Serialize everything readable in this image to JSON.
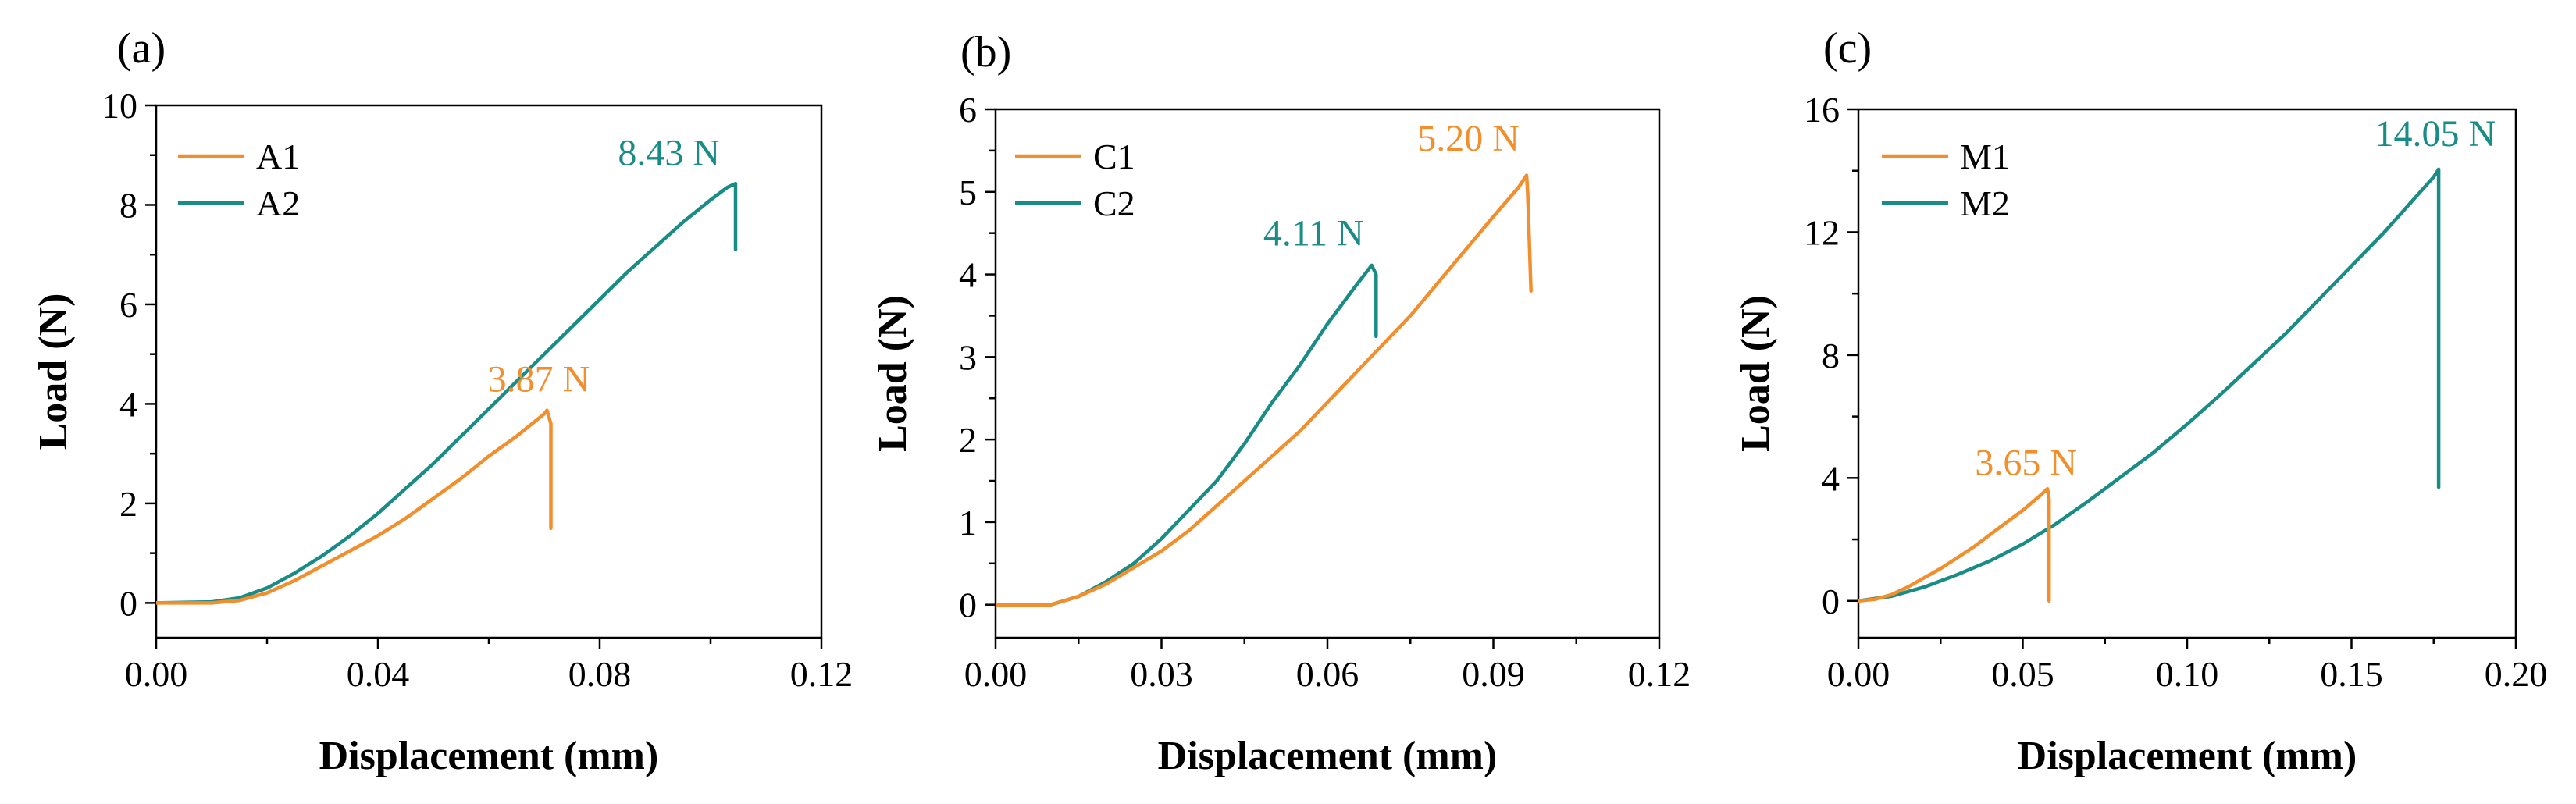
{
  "chart_data": [
    {
      "type": "line",
      "panel_label": "(a)",
      "xlabel": "Displacement (mm)",
      "ylabel": "Load (N)",
      "xlim": [
        0,
        0.12
      ],
      "ylim": [
        -0.7,
        10
      ],
      "xticks": [
        0,
        0.04,
        0.08,
        0.12
      ],
      "xtick_labels": [
        "0.00",
        "0.04",
        "0.08",
        "0.12"
      ],
      "yticks": [
        0,
        2,
        4,
        6,
        8,
        10
      ],
      "ytick_labels": [
        "0",
        "2",
        "4",
        "6",
        "8",
        "10"
      ],
      "legend_position": "top-left",
      "series": [
        {
          "name": "A1",
          "color": "#f28e2b",
          "x": [
            0,
            0.01,
            0.015,
            0.02,
            0.025,
            0.03,
            0.035,
            0.04,
            0.045,
            0.05,
            0.055,
            0.06,
            0.065,
            0.07,
            0.0705,
            0.0712,
            0.0712
          ],
          "y": [
            0,
            0,
            0.05,
            0.2,
            0.45,
            0.75,
            1.05,
            1.35,
            1.7,
            2.1,
            2.5,
            2.95,
            3.35,
            3.8,
            3.87,
            3.6,
            1.5
          ]
        },
        {
          "name": "A2",
          "color": "#1a8c86",
          "x": [
            0,
            0.01,
            0.015,
            0.02,
            0.025,
            0.03,
            0.035,
            0.04,
            0.045,
            0.05,
            0.055,
            0.06,
            0.065,
            0.07,
            0.075,
            0.08,
            0.085,
            0.09,
            0.095,
            0.1,
            0.103,
            0.1045,
            0.1045
          ],
          "y": [
            0,
            0.02,
            0.1,
            0.3,
            0.6,
            0.95,
            1.35,
            1.8,
            2.3,
            2.8,
            3.35,
            3.9,
            4.45,
            5.0,
            5.55,
            6.1,
            6.65,
            7.15,
            7.65,
            8.1,
            8.35,
            8.43,
            7.1
          ]
        }
      ],
      "annotations": [
        {
          "text": "3.87 N",
          "color": "#f28e2b",
          "x": 0.069,
          "y": 4.25
        },
        {
          "text": "8.43 N",
          "color": "#1a8c86",
          "x": 0.0925,
          "y": 8.8
        }
      ]
    },
    {
      "type": "line",
      "panel_label": "(b)",
      "xlabel": "Displacement (mm)",
      "ylabel": "Load (N)",
      "xlim": [
        0,
        0.12
      ],
      "ylim": [
        -0.4,
        6
      ],
      "xticks": [
        0,
        0.03,
        0.06,
        0.09,
        0.12
      ],
      "xtick_labels": [
        "0.00",
        "0.03",
        "0.06",
        "0.09",
        "0.12"
      ],
      "yticks": [
        0,
        1,
        2,
        3,
        4,
        5,
        6
      ],
      "ytick_labels": [
        "0",
        "1",
        "2",
        "3",
        "4",
        "5",
        "6"
      ],
      "legend_position": "top-left",
      "series": [
        {
          "name": "C1",
          "color": "#f28e2b",
          "x": [
            0,
            0.01,
            0.015,
            0.02,
            0.025,
            0.03,
            0.035,
            0.04,
            0.045,
            0.05,
            0.055,
            0.06,
            0.065,
            0.07,
            0.075,
            0.08,
            0.085,
            0.09,
            0.0945,
            0.096,
            0.0962,
            0.0968
          ],
          "y": [
            0,
            0,
            0.1,
            0.25,
            0.45,
            0.65,
            0.9,
            1.2,
            1.5,
            1.8,
            2.1,
            2.45,
            2.8,
            3.15,
            3.5,
            3.9,
            4.3,
            4.7,
            5.05,
            5.2,
            5.0,
            3.8
          ]
        },
        {
          "name": "C2",
          "color": "#1a8c86",
          "x": [
            0,
            0.01,
            0.015,
            0.02,
            0.025,
            0.03,
            0.035,
            0.04,
            0.045,
            0.05,
            0.055,
            0.06,
            0.065,
            0.068,
            0.0688,
            0.0688
          ],
          "y": [
            0,
            0,
            0.1,
            0.28,
            0.5,
            0.8,
            1.15,
            1.5,
            1.95,
            2.45,
            2.9,
            3.4,
            3.85,
            4.11,
            4.0,
            3.25
          ]
        }
      ],
      "annotations": [
        {
          "text": "4.11 N",
          "color": "#1a8c86",
          "x": 0.0575,
          "y": 4.35
        },
        {
          "text": "5.20 N",
          "color": "#f28e2b",
          "x": 0.0855,
          "y": 5.5
        }
      ]
    },
    {
      "type": "line",
      "panel_label": "(c)",
      "xlabel": "Displacement (mm)",
      "ylabel": "Load (N)",
      "xlim": [
        0,
        0.2
      ],
      "ylim": [
        -1.2,
        16
      ],
      "xticks": [
        0,
        0.05,
        0.1,
        0.15,
        0.2
      ],
      "xtick_labels": [
        "0.00",
        "0.05",
        "0.10",
        "0.15",
        "0.20"
      ],
      "yticks": [
        0,
        4,
        8,
        12,
        16
      ],
      "ytick_labels": [
        "0",
        "4",
        "8",
        "12",
        "16"
      ],
      "legend_position": "top-left",
      "series": [
        {
          "name": "M1",
          "color": "#f28e2b",
          "x": [
            0,
            0.005,
            0.01,
            0.015,
            0.02,
            0.025,
            0.03,
            0.035,
            0.04,
            0.045,
            0.05,
            0.055,
            0.0575,
            0.058,
            0.058
          ],
          "y": [
            0,
            0.05,
            0.2,
            0.45,
            0.75,
            1.05,
            1.4,
            1.75,
            2.15,
            2.55,
            2.95,
            3.4,
            3.65,
            3.3,
            0
          ]
        },
        {
          "name": "M2",
          "color": "#1a8c86",
          "x": [
            0,
            0.01,
            0.02,
            0.03,
            0.04,
            0.05,
            0.06,
            0.07,
            0.08,
            0.09,
            0.1,
            0.11,
            0.12,
            0.13,
            0.14,
            0.15,
            0.16,
            0.17,
            0.175,
            0.1765,
            0.1765
          ],
          "y": [
            0,
            0.15,
            0.45,
            0.85,
            1.3,
            1.85,
            2.5,
            3.25,
            4.05,
            4.85,
            5.75,
            6.7,
            7.7,
            8.7,
            9.8,
            10.9,
            12.0,
            13.2,
            13.8,
            14.05,
            3.7
          ]
        }
      ],
      "annotations": [
        {
          "text": "3.65 N",
          "color": "#f28e2b",
          "x": 0.051,
          "y": 4.1
        },
        {
          "text": "14.05 N",
          "color": "#1a8c86",
          "x": 0.1755,
          "y": 14.8
        }
      ]
    }
  ]
}
